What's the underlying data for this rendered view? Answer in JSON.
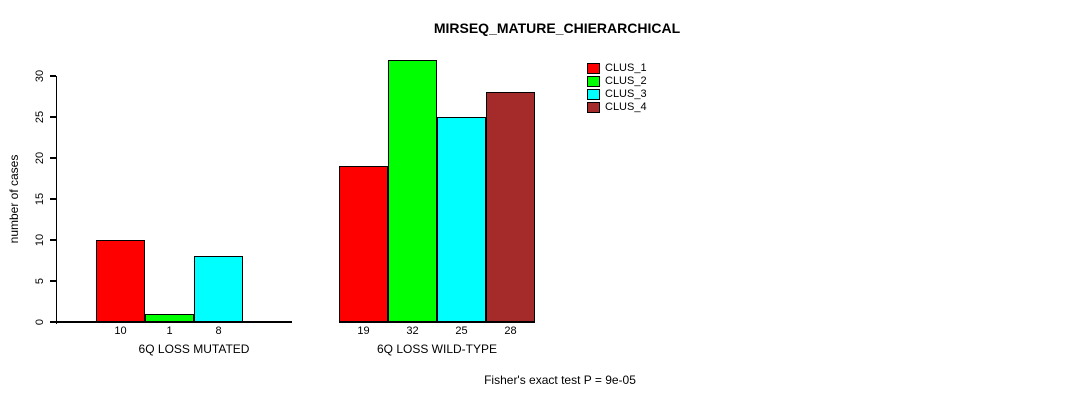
{
  "chart_data": {
    "type": "bar",
    "title": "MIRSEQ_MATURE_CHIERARCHICAL",
    "ylabel": "number of cases",
    "xlabel": "",
    "annotation": "Fisher's exact test P = 9e-05",
    "ylim": [
      0,
      32
    ],
    "yticks": [
      0,
      5,
      10,
      15,
      20,
      25,
      30
    ],
    "grid": false,
    "legend_position": "top-right",
    "legend": [
      {
        "label": "CLUS_1",
        "color": "#FF0000"
      },
      {
        "label": "CLUS_2",
        "color": "#00FF00"
      },
      {
        "label": "CLUS_3",
        "color": "#00FFFF"
      },
      {
        "label": "CLUS_4",
        "color": "#A52A2A"
      }
    ],
    "groups": [
      {
        "label": "6Q LOSS MUTATED",
        "bars": [
          {
            "series": "CLUS_1",
            "value": 10,
            "label": "10"
          },
          {
            "series": "CLUS_2",
            "value": 1,
            "label": "1"
          },
          {
            "series": "CLUS_3",
            "value": 8,
            "label": "8"
          },
          {
            "series": "CLUS_4",
            "value": 0,
            "label": ""
          }
        ]
      },
      {
        "label": "6Q LOSS WILD-TYPE",
        "bars": [
          {
            "series": "CLUS_1",
            "value": 19,
            "label": "19"
          },
          {
            "series": "CLUS_2",
            "value": 32,
            "label": "32"
          },
          {
            "series": "CLUS_3",
            "value": 25,
            "label": "25"
          },
          {
            "series": "CLUS_4",
            "value": 28,
            "label": "28"
          }
        ]
      }
    ],
    "axis_color": "#000000",
    "background_color": "#FFFFFF"
  }
}
